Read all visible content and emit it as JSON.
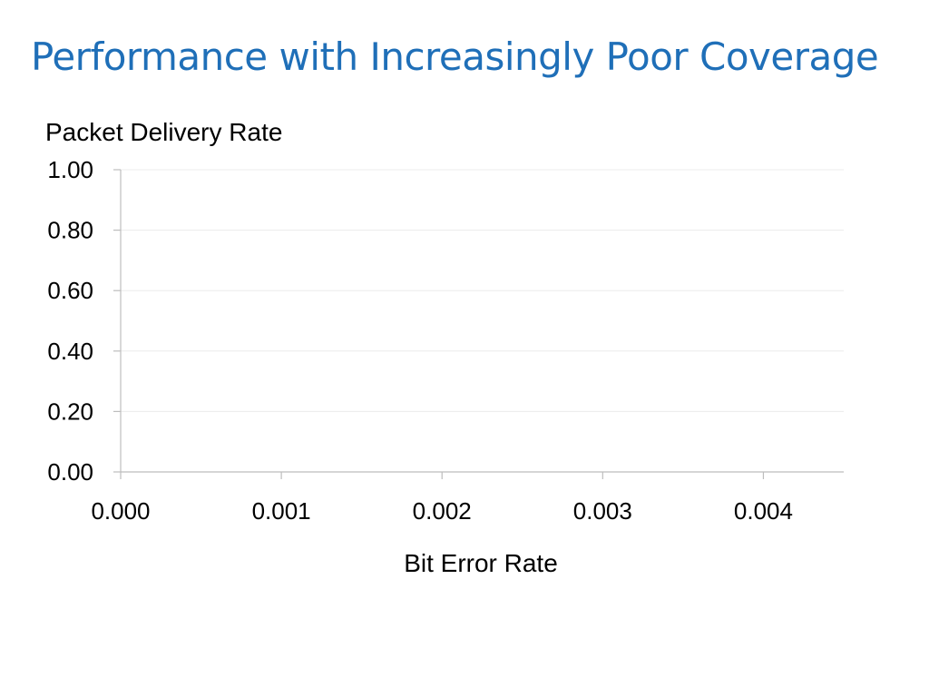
{
  "slide": {
    "title": "Performance with Increasingly Poor Coverage"
  },
  "colors": {
    "title": "#1f6fb8",
    "axis": "#bdbdbd",
    "grid": "#ececec"
  },
  "chart_data": {
    "type": "line",
    "title": "",
    "xlabel": "Bit Error Rate",
    "ylabel": "Packet Delivery Rate",
    "xlim": [
      0.0,
      0.0045
    ],
    "ylim": [
      0.0,
      1.0
    ],
    "x_ticks": [
      0.0,
      0.001,
      0.002,
      0.003,
      0.004
    ],
    "x_tick_labels": [
      "0.000",
      "0.001",
      "0.002",
      "0.003",
      "0.004"
    ],
    "y_ticks": [
      0.0,
      0.2,
      0.4,
      0.6,
      0.8,
      1.0
    ],
    "y_tick_labels": [
      "0.00",
      "0.20",
      "0.40",
      "0.60",
      "0.80",
      "1.00"
    ],
    "grid": true,
    "series": []
  }
}
